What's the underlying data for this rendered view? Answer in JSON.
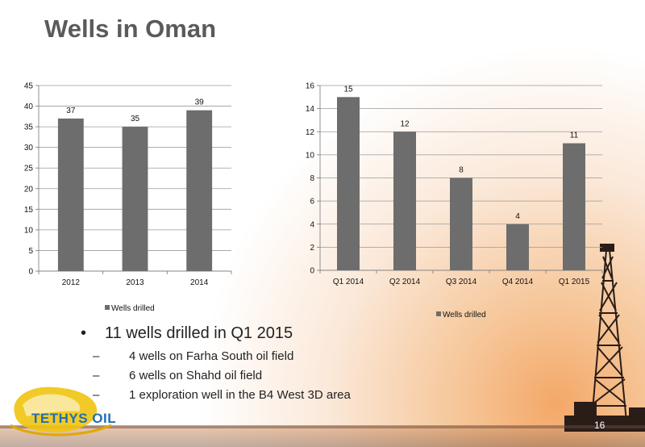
{
  "slide": {
    "title": "Wells in Oman",
    "page_number": "16",
    "logo_text": "TETHYS OIL"
  },
  "bullets": {
    "main": "11 wells drilled in Q1 2015",
    "sub": [
      "4 wells on Farha South oil field",
      "6 wells on Shahd oil field",
      "1 exploration well in the B4 West 3D area"
    ]
  },
  "chart_data": [
    {
      "type": "bar",
      "categories": [
        "2012",
        "2013",
        "2014"
      ],
      "series": [
        {
          "name": "Wells drilled",
          "values": [
            37,
            35,
            39
          ],
          "color": "#6d6d6d"
        }
      ],
      "ylim": [
        0,
        45
      ],
      "yticks": [
        0,
        5,
        10,
        15,
        20,
        25,
        30,
        35,
        40,
        45
      ],
      "grid": true,
      "legend": "bottom-left"
    },
    {
      "type": "bar",
      "categories": [
        "Q1 2014",
        "Q2 2014",
        "Q3 2014",
        "Q4 2014",
        "Q1 2015"
      ],
      "series": [
        {
          "name": "Wells drilled",
          "values": [
            15,
            12,
            8,
            4,
            11
          ],
          "color": "#6d6d6d"
        }
      ],
      "ylim": [
        0,
        16
      ],
      "yticks": [
        0,
        2,
        4,
        6,
        8,
        10,
        12,
        14,
        16
      ],
      "grid": true,
      "legend": "bottom-left"
    }
  ]
}
